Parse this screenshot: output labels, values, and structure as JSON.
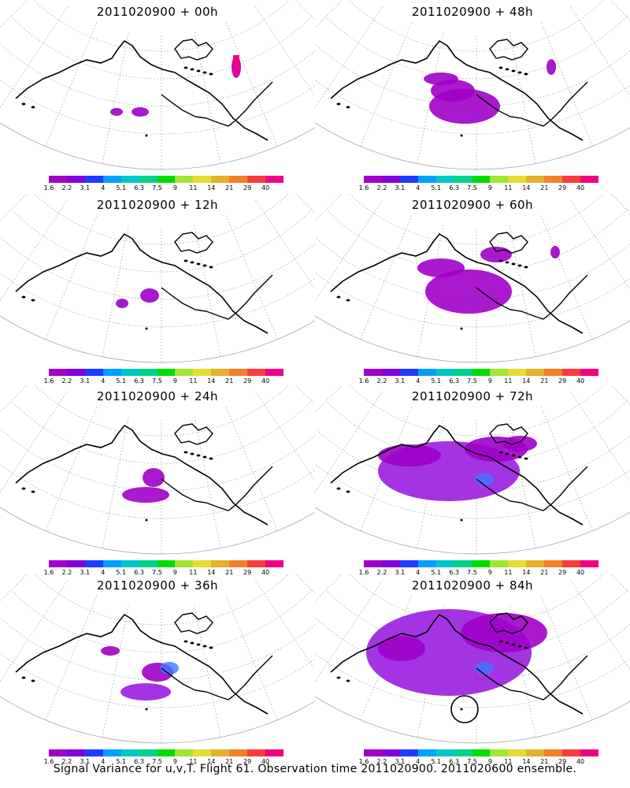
{
  "footer": "Signal Variance for u,v,T. Flight 61. Observation time 2011020900. 2011020600 ensemble.",
  "colorbar": {
    "labels": [
      "1.6",
      "2.2",
      "3.1",
      "4",
      "5.1",
      "6.3",
      "7.5",
      "9",
      "11",
      "14",
      "21",
      "29",
      "40"
    ],
    "colors": [
      "#a000c8",
      "#8200dc",
      "#1e3cff",
      "#00a0ff",
      "#00c8c8",
      "#00d28c",
      "#00dc00",
      "#a0e632",
      "#e6dc32",
      "#e6af2d",
      "#f08228",
      "#fa3c3c",
      "#f00082"
    ]
  },
  "panels": [
    {
      "id": "p00",
      "title": "2011020900 + 00h",
      "level": 0.05
    },
    {
      "id": "p48",
      "title": "2011020900 + 48h",
      "level": 0.35
    },
    {
      "id": "p12",
      "title": "2011020900 + 12h",
      "level": 0.08
    },
    {
      "id": "p60",
      "title": "2011020900 + 60h",
      "level": 0.45
    },
    {
      "id": "p24",
      "title": "2011020900 + 24h",
      "level": 0.15
    },
    {
      "id": "p72",
      "title": "2011020900 + 72h",
      "level": 0.6
    },
    {
      "id": "p36",
      "title": "2011020900 + 36h",
      "level": 0.2
    },
    {
      "id": "p84",
      "title": "2011020900 + 84h",
      "level": 0.75
    }
  ]
}
